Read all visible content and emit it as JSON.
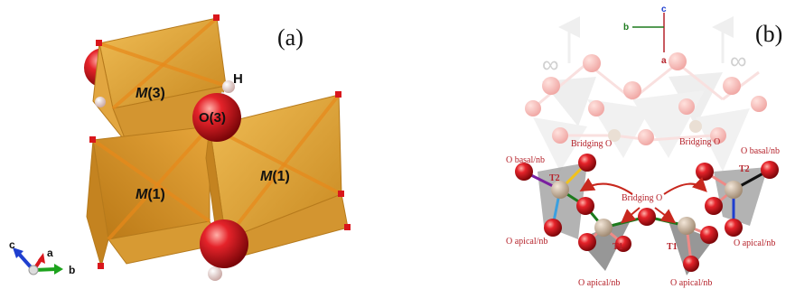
{
  "panel_a": {
    "label": "(a)",
    "atoms": {
      "h": "H",
      "o3": "O(3)",
      "m3_italic": "M",
      "m3_suffix": "(3)",
      "m1_left_italic": "M",
      "m1_left_suffix": "(1)",
      "m1_right_italic": "M",
      "m1_right_suffix": "(1)"
    },
    "axes": {
      "c": "c",
      "a": "a",
      "b": "b"
    },
    "colors": {
      "polyhedron": "#e8a93c",
      "oxygen": "#d9161c",
      "hydrogen": "#f2d2cf"
    }
  },
  "panel_b": {
    "label": "(b)",
    "axes": {
      "c": "c",
      "b": "b",
      "a": "a"
    },
    "infinity_left": "∞",
    "infinity_right": "∞",
    "labels": {
      "bridging_o_left": "Bridging O",
      "bridging_o_right": "Bridging O",
      "bridging_o_center": "Bridging O",
      "o_basal_left": "O basal/nb",
      "o_basal_right": "O basal/nb",
      "t2_left": "T2",
      "t2_right": "T2",
      "t1_left": "T1",
      "t1_right": "T1",
      "o_apical_left": "O apical/nb",
      "o_apical_right": "O apical/nb",
      "o_apical_bottom_left": "O apical/nb",
      "o_apical_bottom_right": "O apical/nb"
    },
    "colors": {
      "label": "#b5222a",
      "oxygen": "#d9161c",
      "tetra": "#8a8a8a",
      "arrow": "#c8281e"
    }
  }
}
